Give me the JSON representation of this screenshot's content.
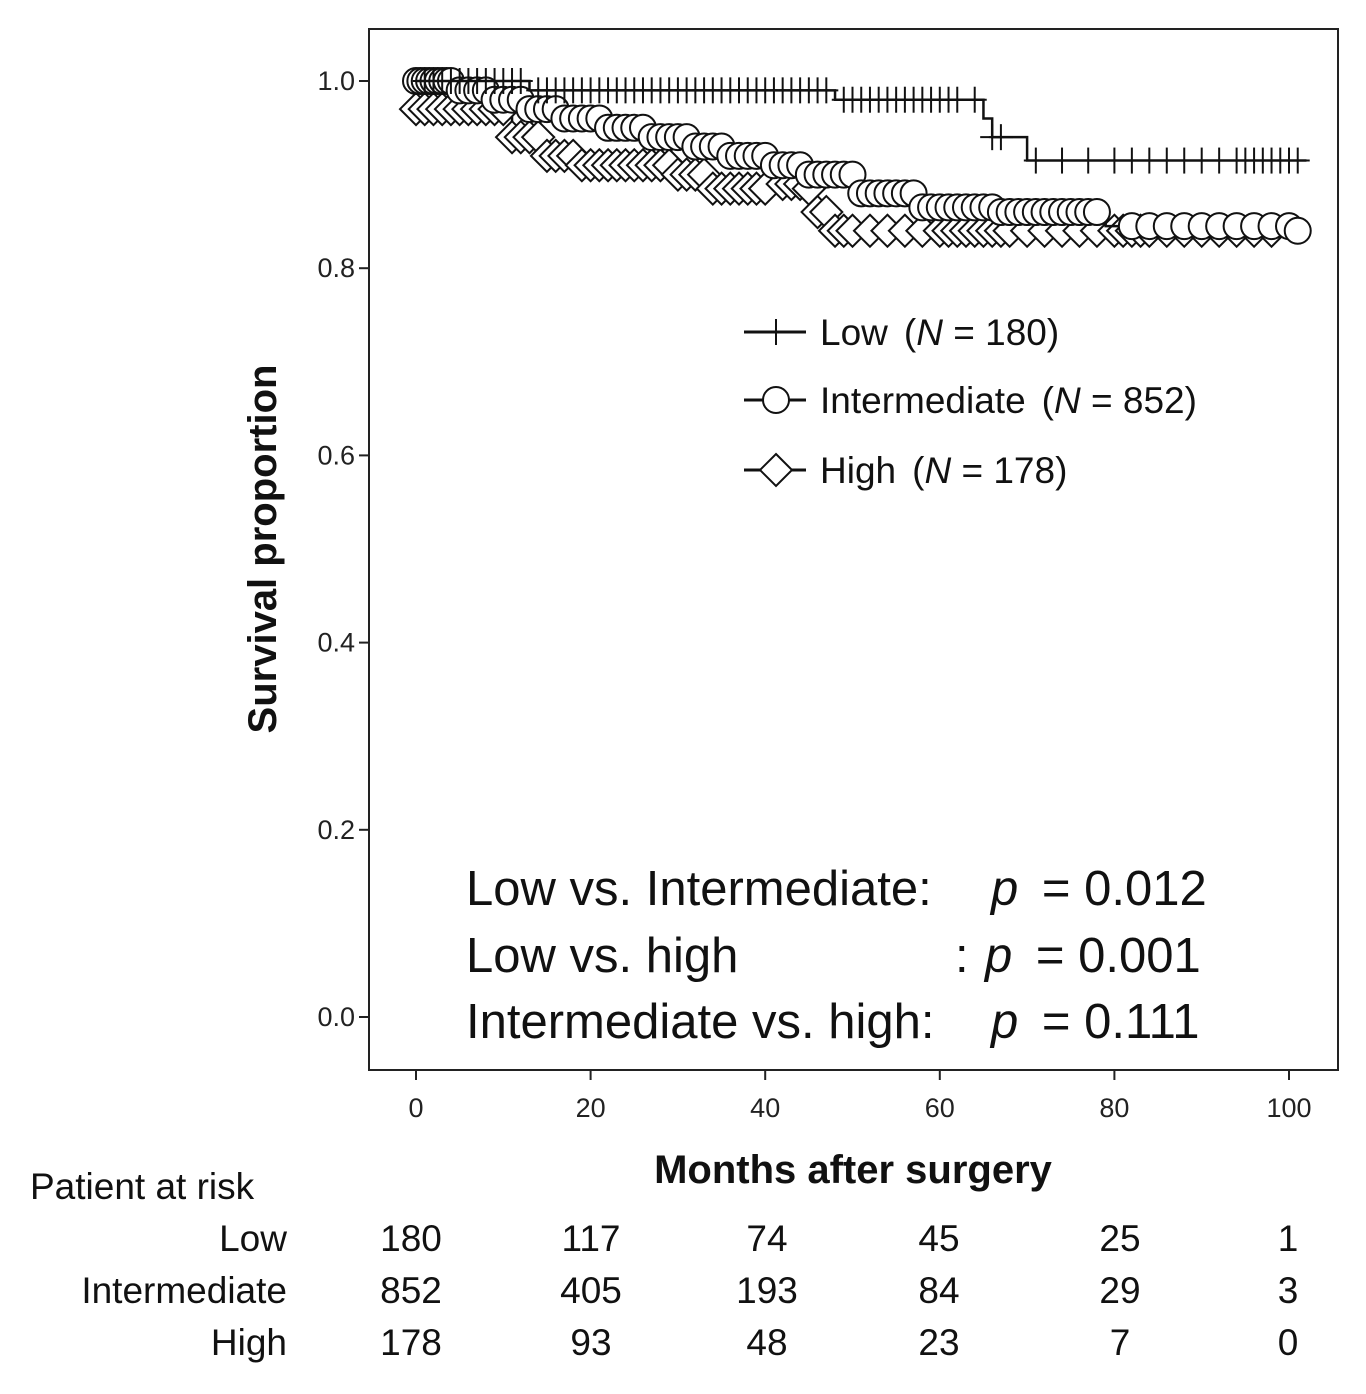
{
  "chart_data": {
    "type": "line",
    "subtype": "kaplan-meier",
    "xlabel": "Months after surgery",
    "ylabel": "Survival proportion",
    "xlim": [
      -5,
      103
    ],
    "ylim": [
      -0.035,
      1.055
    ],
    "xticks": [
      0,
      20,
      40,
      60,
      80,
      100
    ],
    "yticks": [
      0.0,
      0.2,
      0.4,
      0.6,
      0.8,
      1.0
    ],
    "xtick_labels": [
      "0",
      "20",
      "40",
      "60",
      "80",
      "100"
    ],
    "ytick_labels": [
      "0.0",
      "0.2",
      "0.4",
      "0.6",
      "0.8",
      "1.0"
    ],
    "legend_position": "upper-right",
    "series": [
      {
        "key": "low",
        "marker": "plus",
        "legend": {
          "name": "Low",
          "n_prefix": "(",
          "n_italic": "N",
          "n_suffix": " = 180)"
        },
        "steps": [
          [
            0,
            1.0
          ],
          [
            13,
            0.99
          ],
          [
            48,
            0.98
          ],
          [
            65,
            0.96
          ],
          [
            66,
            0.94
          ],
          [
            70,
            0.915
          ],
          [
            102,
            0.915
          ]
        ],
        "censor_x": [
          1,
          2,
          3,
          4,
          5,
          6,
          7,
          8,
          9,
          10,
          11,
          12,
          14,
          15,
          16,
          17,
          18,
          19,
          20,
          21,
          22,
          23,
          24,
          25,
          26,
          27,
          28,
          29,
          30,
          31,
          32,
          33,
          34,
          35,
          36,
          37,
          38,
          39,
          40,
          41,
          42,
          43,
          44,
          45,
          46,
          47,
          49,
          50,
          51,
          52,
          53,
          54,
          55,
          56,
          57,
          58,
          59,
          60,
          61,
          62,
          64,
          66,
          67,
          71,
          74,
          77,
          80,
          82,
          84,
          86,
          88,
          90,
          92,
          94,
          95,
          96,
          97,
          98,
          99,
          100,
          101
        ]
      },
      {
        "key": "intermediate",
        "marker": "circle",
        "legend": {
          "name": "Intermediate",
          "n_prefix": "(",
          "n_italic": "N",
          "n_suffix": " = 852)"
        },
        "steps": [
          [
            0,
            1.0
          ],
          [
            5,
            0.99
          ],
          [
            9,
            0.98
          ],
          [
            13,
            0.97
          ],
          [
            17,
            0.96
          ],
          [
            22,
            0.95
          ],
          [
            27,
            0.94
          ],
          [
            32,
            0.93
          ],
          [
            36,
            0.92
          ],
          [
            41,
            0.91
          ],
          [
            45,
            0.9
          ],
          [
            51,
            0.88
          ],
          [
            58,
            0.865
          ],
          [
            67,
            0.86
          ],
          [
            79,
            0.845
          ],
          [
            101,
            0.84
          ]
        ],
        "censor_x": [
          0,
          0.5,
          1,
          1.5,
          2,
          2.5,
          3,
          3.5,
          4,
          5,
          6,
          7,
          8,
          9,
          10,
          11,
          12,
          13,
          14,
          15,
          16,
          17,
          18,
          19,
          20,
          21,
          22,
          23,
          24,
          25,
          26,
          27,
          28,
          29,
          30,
          31,
          32,
          33,
          34,
          35,
          36,
          37,
          38,
          39,
          40,
          41,
          42,
          43,
          44,
          45,
          46,
          47,
          48,
          49,
          50,
          51,
          52,
          53,
          54,
          55,
          56,
          57,
          58,
          59,
          60,
          61,
          62,
          63,
          64,
          65,
          66,
          67,
          68,
          69,
          70,
          71,
          72,
          73,
          74,
          75,
          76,
          77,
          78,
          82,
          84,
          86,
          88,
          90,
          92,
          94,
          96,
          98,
          100,
          101
        ]
      },
      {
        "key": "high",
        "marker": "diamond",
        "legend": {
          "name": "High",
          "n_prefix": "(",
          "n_italic": "N",
          "n_suffix": " = 178)"
        },
        "steps": [
          [
            0,
            0.97
          ],
          [
            11,
            0.94
          ],
          [
            15,
            0.92
          ],
          [
            19,
            0.91
          ],
          [
            30,
            0.9
          ],
          [
            34,
            0.885
          ],
          [
            41,
            0.89
          ],
          [
            45,
            0.885
          ],
          [
            46,
            0.86
          ],
          [
            48,
            0.84
          ],
          [
            100,
            0.84
          ]
        ],
        "censor_x": [
          0,
          1,
          2,
          3,
          4,
          5,
          6,
          7,
          8,
          9,
          10,
          11,
          12,
          13,
          14,
          15,
          16,
          17,
          18,
          19,
          20,
          21,
          22,
          23,
          24,
          25,
          26,
          27,
          28,
          29,
          30,
          31,
          32,
          33,
          34,
          35,
          36,
          37,
          38,
          39,
          40,
          42,
          43,
          44,
          45,
          46,
          47,
          48,
          49,
          50,
          52,
          54,
          56,
          58,
          60,
          61,
          62,
          63,
          64,
          65,
          66,
          67,
          68,
          70,
          72,
          74,
          76,
          78,
          80,
          81,
          82,
          83,
          84,
          86,
          88,
          90,
          92,
          94,
          96,
          98
        ]
      }
    ],
    "p_values": [
      {
        "comparison": "Low vs. Intermediate:",
        "stat": "p",
        "value": "= 0.012"
      },
      {
        "comparison": "Low vs. high",
        "separator": ":",
        "stat": "p",
        "value": "= 0.001"
      },
      {
        "comparison": "Intermediate vs. high:",
        "stat": "p",
        "value": "= 0.111"
      }
    ],
    "risk_table": {
      "title": "Patient at risk",
      "rows": [
        {
          "label": "Low",
          "values": [
            "180",
            "117",
            "74",
            "45",
            "25",
            "1"
          ]
        },
        {
          "label": "Intermediate",
          "values": [
            "852",
            "405",
            "193",
            "84",
            "29",
            "3"
          ]
        },
        {
          "label": "High",
          "values": [
            "178",
            "93",
            "48",
            "23",
            "7",
            "0"
          ]
        }
      ]
    }
  }
}
